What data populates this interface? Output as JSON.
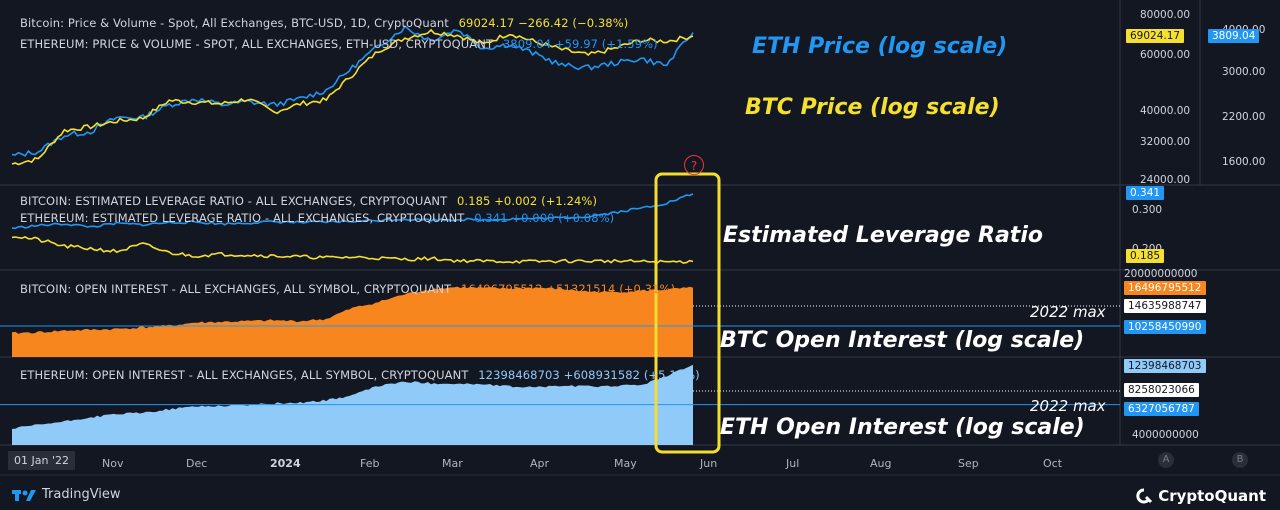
{
  "colors": {
    "background": "#131722",
    "btc": "#f5e02f",
    "eth": "#2196f3",
    "btc_oi_fill": "#f7861e",
    "eth_oi_fill": "#90caf9",
    "highlight": "#f4dc33",
    "annotation_eth": "#2196f3",
    "annotation_btc": "#f5e02f",
    "annotation_white": "#ffffff"
  },
  "panes": {
    "price": {
      "btc_legend": "Bitcoin: Price & Volume - Spot, All Exchanges, BTC-USD, 1D, CryptoQuant",
      "btc_values": "69024.17  −266.42 (−0.38%)",
      "eth_legend": "ETHEREUM: PRICE & VOLUME - SPOT, ALL EXCHANGES, ETH-USD, CRYPTOQUANT",
      "eth_values": "3809.04  +59.97 (+1.59%)",
      "left_ticks": [
        "80000.00",
        "60000.00",
        "40000.00",
        "32000.00",
        "24000.00"
      ],
      "right_ticks": [
        "4000.00",
        "3000.00",
        "2200.00",
        "1600.00"
      ],
      "btc_badge": "69024.17",
      "eth_badge": "3809.04",
      "annotation_eth": "ETH Price (log scale)",
      "annotation_btc": "BTC Price (log scale)"
    },
    "leverage": {
      "btc_legend": "BITCOIN: ESTIMATED LEVERAGE RATIO - ALL EXCHANGES, CRYPTOQUANT",
      "btc_values": "0.185  +0.002 (+1.24%)",
      "eth_legend": "ETHEREUM: ESTIMATED LEVERAGE RATIO - ALL EXCHANGES, CRYPTOQUANT",
      "eth_values": "0.341  +0.000 (+0.08%)",
      "ticks": [
        "0.300",
        "0.200"
      ],
      "eth_badge": "0.341",
      "btc_badge": "0.185",
      "annotation": "Estimated Leverage Ratio"
    },
    "btc_oi": {
      "legend": "BITCOIN: OPEN INTEREST - ALL EXCHANGES, ALL SYMBOL, CRYPTOQUANT",
      "values": "16496795512  +51321514 (+0.31%)",
      "ticks": [
        "20000000000"
      ],
      "badge_current": "16496795512",
      "badge_mid": "14635988747",
      "badge_max": "10258450990",
      "max_label": "2022 max",
      "annotation": "BTC Open Interest (log scale)"
    },
    "eth_oi": {
      "legend": "ETHEREUM: OPEN INTEREST - ALL EXCHANGES, ALL SYMBOL, CRYPTOQUANT",
      "values": "12398468703  +608931582 (+5.17%)",
      "ticks": [
        "4000000000"
      ],
      "badge_current": "12398468703",
      "badge_mid": "8258023066",
      "badge_max": "6327056787",
      "max_label": "2022 max",
      "annotation": "ETH Open Interest (log scale)"
    }
  },
  "x_axis": {
    "start_label": "01 Jan '22",
    "ticks": [
      "Nov",
      "Dec",
      "2024",
      "Feb",
      "Mar",
      "Apr",
      "May",
      "Jun",
      "Jul",
      "Aug",
      "Sep",
      "Oct"
    ],
    "scale_buttons": [
      "A",
      "B"
    ]
  },
  "alert_marker": "?",
  "footer": {
    "left": "TradingView",
    "right": "CryptoQuant"
  },
  "chart_data": [
    {
      "type": "line",
      "title": "BTC Price (log scale)",
      "log_scale": true,
      "series": [
        {
          "name": "Bitcoin: Price & Volume - Spot, All Exchanges, BTC-USD, 1D, CryptoQuant",
          "values": [
            27000,
            28000,
            34500,
            35500,
            37000,
            37800,
            43000,
            42500,
            42000,
            43500,
            39500,
            42000,
            43200,
            52000,
            62000,
            68000,
            71500,
            69500,
            65000,
            70500,
            66000,
            62500,
            60000,
            63000,
            67000,
            66500,
            69024
          ]
        }
      ]
    },
    {
      "type": "line",
      "title": "ETH Price (log scale)",
      "log_scale": true,
      "series": [
        {
          "name": "ETHEREUM: PRICE & VOLUME - SPOT, ALL EXCHANGES, ETH-USD, CRYPTOQUANT",
          "values": [
            1550,
            1600,
            1800,
            1850,
            2050,
            2050,
            2250,
            2350,
            2250,
            2300,
            2250,
            2350,
            2500,
            2950,
            3450,
            3950,
            3600,
            3900,
            3400,
            3500,
            3250,
            3000,
            2950,
            3050,
            3150,
            3000,
            3809
          ]
        }
      ]
    },
    {
      "type": "line",
      "title": "Estimated Leverage Ratio",
      "series": [
        {
          "name": "BITCOIN: ESTIMATED LEVERAGE RATIO - ALL EXCHANGES, CRYPTOQUANT",
          "values": [
            0.245,
            0.235,
            0.22,
            0.215,
            0.208,
            0.225,
            0.205,
            0.198,
            0.202,
            0.2,
            0.198,
            0.196,
            0.194,
            0.195,
            0.193,
            0.19,
            0.192,
            0.187,
            0.186,
            0.185,
            0.185,
            0.186,
            0.186,
            0.186,
            0.185,
            0.184,
            0.185
          ]
        },
        {
          "name": "ETHEREUM: ESTIMATED LEVERAGE RATIO - ALL EXCHANGES, CRYPTOQUANT",
          "values": [
            0.262,
            0.268,
            0.272,
            0.265,
            0.273,
            0.27,
            0.275,
            0.276,
            0.272,
            0.274,
            0.277,
            0.275,
            0.276,
            0.278,
            0.28,
            0.283,
            0.281,
            0.282,
            0.281,
            0.283,
            0.284,
            0.286,
            0.289,
            0.298,
            0.308,
            0.32,
            0.341
          ]
        }
      ]
    },
    {
      "type": "area",
      "title": "BTC Open Interest (log scale)",
      "log_scale": true,
      "max_2022": 10258450990,
      "series": [
        {
          "name": "BITCOIN: OPEN INTEREST - ALL EXCHANGES, ALL SYMBOL, CRYPTOQUANT",
          "values": [
            9400000000,
            9500000000,
            9700000000,
            9800000000,
            9900000000,
            10100000000,
            10300000000,
            10700000000,
            10800000000,
            10900000000,
            11000000000,
            10900000000,
            11200000000,
            12800000000,
            13800000000,
            15200000000,
            16200000000,
            16600000000,
            16400000000,
            16300000000,
            16500000000,
            16200000000,
            15700000000,
            15600000000,
            15900000000,
            16100000000,
            16496795512
          ]
        }
      ]
    },
    {
      "type": "area",
      "title": "ETH Open Interest (log scale)",
      "log_scale": true,
      "max_2022": 6327056787,
      "series": [
        {
          "name": "ETHEREUM: OPEN INTEREST - ALL EXCHANGES, ALL SYMBOL, CRYPTOQUANT",
          "values": [
            4200000000,
            4500000000,
            4750000000,
            5100000000,
            5400000000,
            5500000000,
            5850000000,
            6150000000,
            6200000000,
            6300000000,
            6450000000,
            6550000000,
            6800000000,
            7400000000,
            8700000000,
            9300000000,
            9100000000,
            9000000000,
            8900000000,
            8600000000,
            8500000000,
            8700000000,
            8600000000,
            8700000000,
            8800000000,
            10200000000,
            12398468703
          ]
        }
      ]
    }
  ]
}
